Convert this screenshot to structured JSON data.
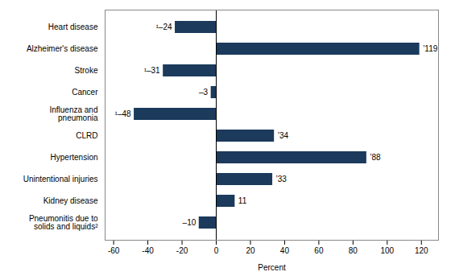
{
  "chart_data": {
    "type": "bar",
    "orientation": "horizontal",
    "categories": [
      "Heart disease",
      "Alzheimer's disease",
      "Stroke",
      "Cancer",
      "Influenza and\npneumonia",
      "CLRD",
      "Hypertension",
      "Unintentional injuries",
      "Kidney disease",
      "Pneumonitis due to\nsolids and liquids²"
    ],
    "values": [
      -24,
      119,
      -31,
      -3,
      -48,
      34,
      88,
      33,
      11,
      -10
    ],
    "value_labels": [
      "¹–24",
      "’119",
      "¹–31",
      "–3",
      "¹–48",
      "’34",
      "’88",
      "’33",
      "11",
      "–10"
    ],
    "data_labels": true,
    "color": "#1b3a5c",
    "xlabel": "Percent",
    "xlim": [
      -65,
      130
    ],
    "xticks": [
      -60,
      -40,
      -20,
      0,
      20,
      40,
      60,
      80,
      100,
      120
    ],
    "grid": false
  }
}
